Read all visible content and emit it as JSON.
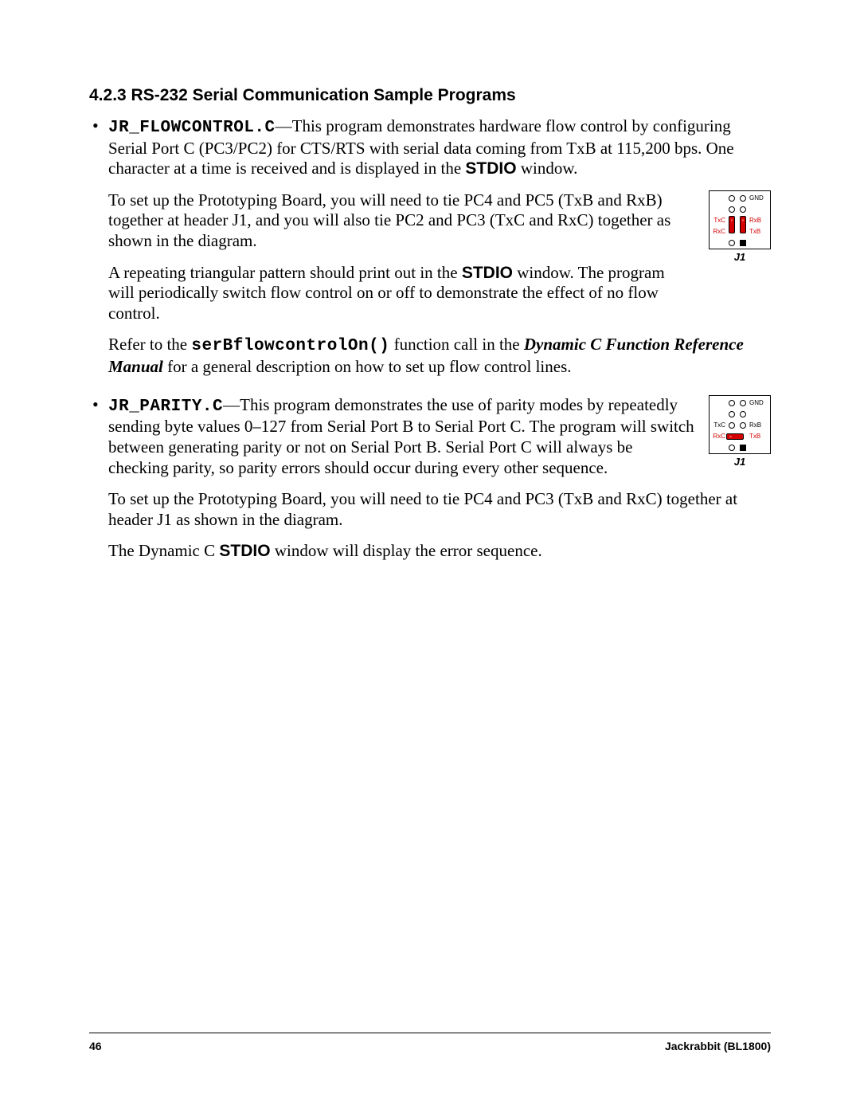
{
  "heading": "4.2.3  RS-232 Serial Communication Sample Programs",
  "items": [
    {
      "file": "JR_FLOWCONTROL.C",
      "intro": "—This program demonstrates hardware flow control by configuring Serial Port C (PC3/PC2) for CTS/RTS with serial data coming from TxB at 115,200 bps. One character at a time is received and is displayed in the ",
      "intro_bold": "STDIO",
      "intro_tail": " window.",
      "p2a": "To set up the Prototyping Board, you will need to tie PC4 and PC5 (TxB and RxB) together at header J1, and you will also tie PC2 and PC3 (TxC and RxC) together as shown in the diagram.",
      "p2b_pre": "A repeating triangular pattern should print out in the ",
      "p2b_bold": "STDIO",
      "p2b_post": " window. The program will periodically switch flow control on or off to demonstrate the effect of no flow control.",
      "p3_pre": "Refer to the ",
      "p3_code": "serBflowcontrolOn()",
      "p3_mid": " function call in the ",
      "p3_ital": "Dynamic C Function Reference Manual",
      "p3_post": " for a general description on how to set up flow control lines.",
      "diagram": {
        "gnd": "GND",
        "txc": "TxC",
        "rxb": "RxB",
        "rxc": "RxC",
        "txb": "TxB",
        "j": "J1"
      }
    },
    {
      "file": "JR_PARITY.C",
      "intro": "—This program demonstrates the use of parity modes by repeatedly sending byte values 0–127 from Serial Port B to Serial Port C. The program will switch between generating parity or not on Serial Port B. Serial Port C will always be checking parity, so parity errors should occur during every other sequence.",
      "p2": "To set up the Prototyping Board, you will need to tie PC4 and PC3 (TxB and RxC) together at header J1 as shown in the diagram.",
      "p3_pre": "The Dynamic C ",
      "p3_bold": "STDIO",
      "p3_post": " window will display the error sequence.",
      "diagram": {
        "gnd": "GND",
        "txc": "TxC",
        "rxb": "RxB",
        "rxc": "RxC",
        "txb": "TxB",
        "j": "J1"
      }
    }
  ],
  "footer": {
    "page": "46",
    "title": "Jackrabbit (BL1800)"
  }
}
